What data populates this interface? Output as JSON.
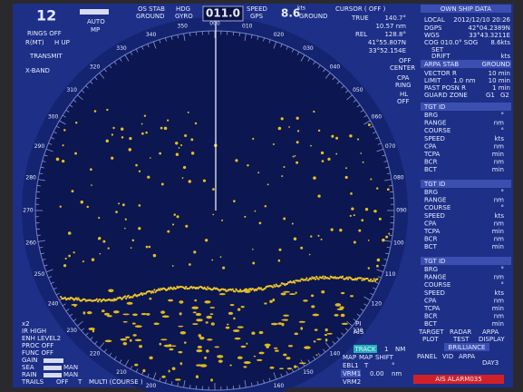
{
  "top_bar": {
    "range": "12",
    "gain_mode": "AUTO",
    "mp": "MP",
    "stab": "OS STAB",
    "stab_ref": "GROUND",
    "hdg": "HDG",
    "hdg_src": "GYRO",
    "heading": "011.0",
    "speed_label": "SPEED",
    "speed_src": "GPS",
    "speed": "8.6",
    "speed_unit": "kts",
    "speed_ref": "GROUND",
    "cursor": "CURSOR ( OFF )",
    "cursor_mode": "TRUE",
    "cursor_brg": "140.7°",
    "cursor_rng": "10.57 nm",
    "rel": "REL",
    "rel_brg": "128.8°",
    "lat": "41°55.807N",
    "lon": "33°52.154E"
  },
  "left_panel": {
    "rings": "RINGS OFF",
    "motion": "R(MT)",
    "orientation": "H UP",
    "transmit": "TRANSMIT",
    "band": "X-BAND"
  },
  "center_labels": {
    "off": "OFF",
    "center": "CENTER",
    "cpa": "CPA",
    "ring": "RING",
    "hl": "HL",
    "hl_off": "OFF"
  },
  "bearing_labels": [
    "000",
    "010",
    "020",
    "030",
    "040",
    "050",
    "060",
    "070",
    "080",
    "090",
    "100",
    "110",
    "120",
    "130",
    "140",
    "150",
    "160",
    "170",
    "180",
    "190",
    "200",
    "210",
    "220",
    "230",
    "240",
    "250",
    "260",
    "270",
    "280",
    "290",
    "300",
    "310",
    "320",
    "330",
    "340",
    "350"
  ],
  "own_ship": {
    "title": "OWN SHIP DATA",
    "local": "LOCAL",
    "datetime": "2012/12/10 20:26",
    "dgps": "DGPS",
    "lat": "42°04.2389N",
    "wgs": "WGS",
    "lon": "33°43.3211E",
    "cog": "COG 010.0° SOG",
    "sog": "8.6kts",
    "set": "SET",
    "drift": "DRIFT",
    "drift_unit": "kts"
  },
  "arpa": {
    "title": "ARPA STAB",
    "ref": "GROUND",
    "vector": "VECTOR R",
    "vector_val": "10 min",
    "limit": "LIMIT",
    "limit_rng": "1.0 nm",
    "limit_time": "10 min",
    "past": "PAST POSN R",
    "past_val": "1 min",
    "guard": "GUARD ZONE",
    "g1": "G1",
    "g2": "G2"
  },
  "targets": [
    {
      "title": "TGT ID",
      "rows": [
        [
          "BRG",
          "°"
        ],
        [
          "RANGE",
          "nm"
        ],
        [
          "COURSE",
          "°"
        ],
        [
          "SPEED",
          "kts"
        ],
        [
          "CPA",
          "nm"
        ],
        [
          "TCPA",
          "min"
        ],
        [
          "BCR",
          "nm"
        ],
        [
          "BCT",
          "min"
        ]
      ]
    },
    {
      "title": "TGT ID",
      "rows": [
        [
          "BRG",
          "°"
        ],
        [
          "RANGE",
          "nm"
        ],
        [
          "COURSE",
          "°"
        ],
        [
          "SPEED",
          "kts"
        ],
        [
          "CPA",
          "nm"
        ],
        [
          "TCPA",
          "min"
        ],
        [
          "BCR",
          "nm"
        ],
        [
          "BCT",
          "min"
        ]
      ]
    },
    {
      "title": "TGT ID",
      "rows": [
        [
          "BRG",
          "°"
        ],
        [
          "RANGE",
          "nm"
        ],
        [
          "COURSE",
          "°"
        ],
        [
          "SPEED",
          "kts"
        ],
        [
          "CPA",
          "nm"
        ],
        [
          "TCPA",
          "min"
        ],
        [
          "BCR",
          "nm"
        ],
        [
          "BCT",
          "min"
        ]
      ]
    }
  ],
  "bottom_left": {
    "zoom": "x2",
    "ir": "IR HIGH",
    "enh": "ENH LEVEL2",
    "proc": "PROC OFF",
    "func": "FUNC OFF",
    "gain": "GAIN",
    "sea": "SEA",
    "sea_mode": "MAN",
    "rain": "RAIN",
    "rain_mode": "MAN",
    "trails": "TRAILS",
    "trails_state": "OFF",
    "trails_mode": "T",
    "trails_type": "MULTI (COURSE )"
  },
  "bottom_center": {
    "pi": "PI",
    "ais": "AIS",
    "track": "TRACK",
    "track_val": "1",
    "track_unit": "NM",
    "map1": "MAP",
    "map2": "MAP",
    "shift": "SHIFT",
    "ebl1": "EBL1",
    "ebl_mode": "T",
    "ebl_unit": "°",
    "vrm1": "VRM1",
    "vrm_val": "0.00",
    "vrm_unit": "nm",
    "vrm2": "VRM2"
  },
  "bottom_right": {
    "target": "TARGET",
    "plot": "PLOT",
    "radar": "RADAR",
    "test": "TEST",
    "arpa": "ARPA",
    "display": "DISPLAY",
    "brilliance": "BRILLIANCE",
    "panel": "PANEL",
    "vid": "VID",
    "arpa_b": "ARPA",
    "day": "DAY3",
    "alarm": "AIS ALARM035"
  }
}
